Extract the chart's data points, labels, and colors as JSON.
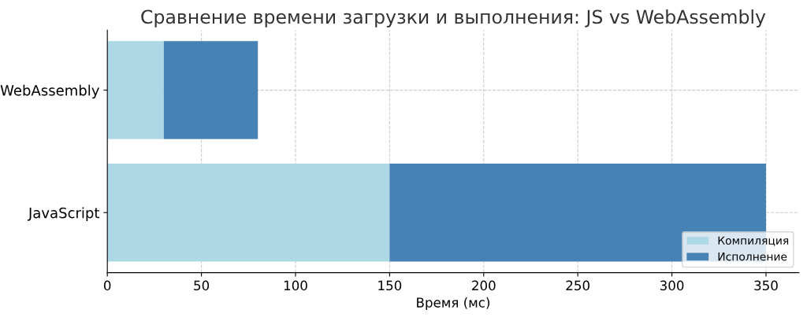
{
  "chart_data": {
    "type": "bar",
    "orientation": "horizontal",
    "stacked": true,
    "title": "Сравнение времени загрузки и выполнения: JS vs WebAssembly",
    "xlabel": "Время (мс)",
    "categories": [
      "WebAssembly",
      "JavaScript"
    ],
    "series": [
      {
        "name": "Компиляция",
        "color": "#add8e6",
        "values": [
          30,
          150
        ]
      },
      {
        "name": "Исполнение",
        "color": "#4682b4",
        "values": [
          50,
          200
        ]
      }
    ],
    "xlim": [
      0,
      367.5
    ],
    "xticks": [
      0,
      50,
      100,
      150,
      200,
      250,
      300,
      350
    ],
    "grid": true,
    "legend": "lower right"
  }
}
